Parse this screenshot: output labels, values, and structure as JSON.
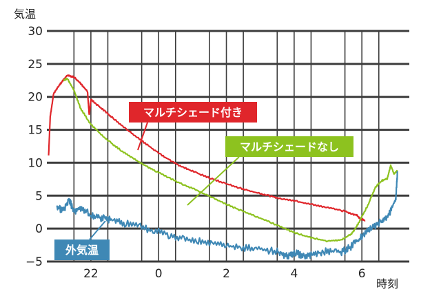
{
  "chart_data": {
    "type": "line",
    "ylabel": "気温",
    "xlabel": "時刻",
    "ylim": [
      -5,
      30
    ],
    "xlim": [
      20.7,
      31.4
    ],
    "y_ticks": [
      30,
      25,
      20,
      15,
      10,
      5,
      0,
      -5
    ],
    "y_tick_labels": [
      "30",
      "25",
      "20",
      "15",
      "10",
      "5",
      "0",
      "−5"
    ],
    "x_ticks": [
      22,
      24,
      26,
      28,
      30
    ],
    "x_tick_labels": [
      "22",
      "0",
      "2",
      "4",
      "6"
    ],
    "grid": true,
    "series": [
      {
        "name": "マルチシェード付き",
        "color": "#e0262b",
        "x": [
          20.75,
          20.8,
          20.9,
          21.1,
          21.3,
          21.5,
          21.7,
          21.9,
          21.95,
          22.0,
          22.3,
          22.6,
          23.0,
          23.4,
          23.8,
          24.2,
          24.6,
          25.0,
          25.5,
          26.0,
          26.5,
          27.0,
          27.5,
          28.0,
          28.5,
          29.0,
          29.5,
          29.85,
          29.95,
          30.1
        ],
        "values": [
          11.0,
          17.0,
          20.5,
          22.0,
          23.3,
          23.0,
          22.0,
          20.8,
          17.3,
          19.6,
          18.3,
          17.0,
          15.3,
          13.7,
          12.2,
          10.8,
          9.6,
          8.7,
          7.7,
          6.8,
          6.0,
          5.3,
          4.7,
          4.2,
          3.7,
          3.2,
          2.6,
          2.0,
          1.5,
          1.2
        ],
        "label_box": "#e0262b"
      },
      {
        "name": "マルチシェードなし",
        "color": "#8dc21f",
        "x": [
          21.2,
          21.3,
          21.5,
          21.7,
          22.0,
          22.4,
          22.8,
          23.2,
          23.6,
          24.0,
          24.5,
          25.0,
          25.5,
          26.0,
          26.5,
          27.0,
          27.5,
          28.0,
          28.5,
          29.0,
          29.4,
          29.7,
          29.9,
          30.2,
          30.4,
          30.6,
          30.75,
          30.85,
          30.95,
          31.05
        ],
        "values": [
          22.5,
          22.8,
          21.0,
          18.2,
          15.8,
          13.8,
          12.2,
          10.8,
          9.6,
          8.5,
          7.2,
          6.1,
          4.9,
          3.7,
          2.6,
          1.6,
          0.5,
          -0.6,
          -1.4,
          -1.9,
          -1.7,
          -0.8,
          0.8,
          3.8,
          6.3,
          7.3,
          7.6,
          9.6,
          8.3,
          8.8
        ],
        "label_box": "#8dc21f"
      },
      {
        "name": "外気温",
        "color": "#3f88b5",
        "x": [
          21.0,
          21.2,
          21.35,
          21.5,
          21.7,
          22.0,
          22.3,
          22.6,
          23.0,
          23.5,
          24.0,
          24.5,
          25.0,
          25.5,
          26.0,
          26.5,
          27.0,
          27.5,
          27.8,
          28.0,
          28.3,
          28.6,
          29.0,
          29.4,
          29.7,
          30.0,
          30.3,
          30.6,
          30.8,
          31.0,
          31.05
        ],
        "values": [
          3.2,
          2.8,
          4.5,
          2.5,
          3.2,
          2.0,
          1.6,
          1.3,
          0.8,
          0.2,
          -0.5,
          -1.3,
          -1.8,
          -2.2,
          -2.6,
          -2.9,
          -3.1,
          -3.5,
          -4.3,
          -3.6,
          -4.2,
          -3.8,
          -3.4,
          -3.6,
          -2.7,
          -1.2,
          0.2,
          1.2,
          2.1,
          4.5,
          8.5
        ],
        "label_box": "#3f88b5"
      }
    ]
  }
}
